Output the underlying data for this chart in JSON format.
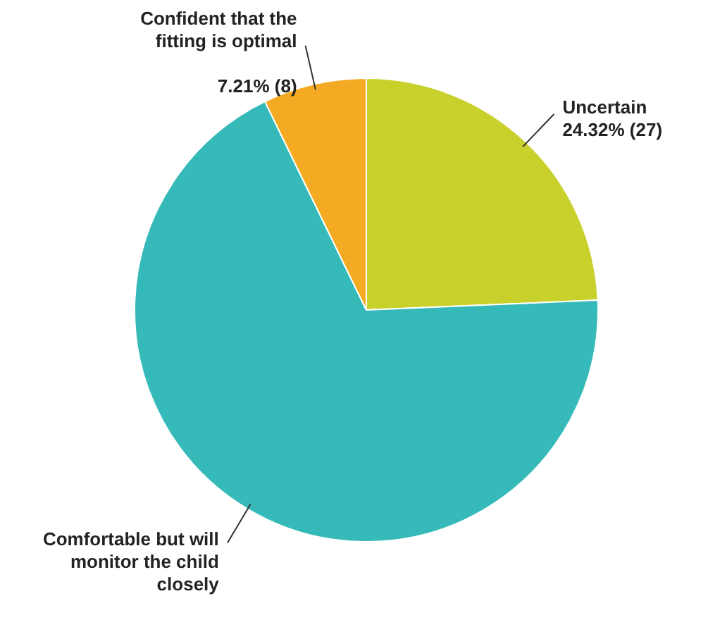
{
  "chart_data": {
    "type": "pie",
    "categories": [
      "Uncertain",
      "Comfortable but will monitor the child closely",
      "Confident that the fitting is optimal"
    ],
    "values": [
      27,
      76,
      8
    ],
    "colors": [
      "#c8d12c",
      "#35b9b9",
      "#f4aa22"
    ],
    "value_labels": [
      "24.32% (27)",
      null,
      "7.21% (8)"
    ],
    "legend": false
  }
}
